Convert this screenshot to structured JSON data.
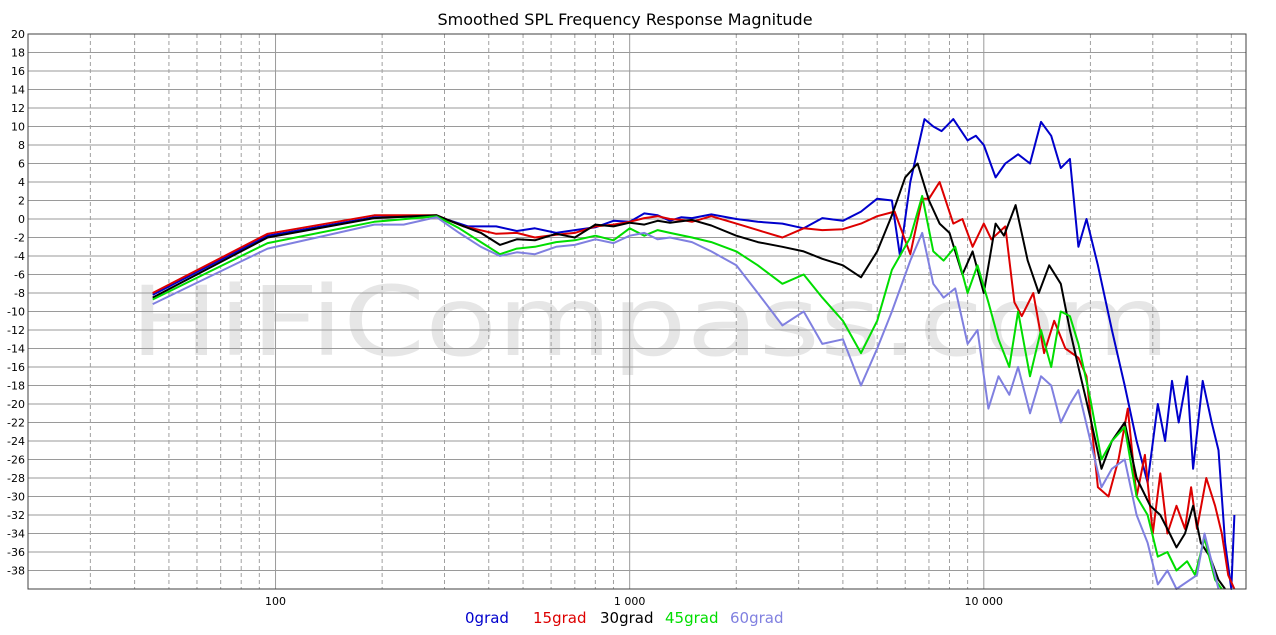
{
  "watermark": "HiFiCompass.com",
  "chart_data": {
    "type": "line",
    "title": "Smoothed SPL Frequency Response Magnitude",
    "xscale": "log",
    "xlim": [
      20,
      55000
    ],
    "ylim": [
      -40,
      20
    ],
    "grid": true,
    "legend_position": "bottom",
    "x_tick_labels": [
      {
        "value": 100,
        "label": "100"
      },
      {
        "value": 1000,
        "label": "1 000"
      },
      {
        "value": 10000,
        "label": "10 000"
      }
    ],
    "y_ticks": [
      20,
      18,
      16,
      14,
      12,
      10,
      8,
      6,
      4,
      2,
      0,
      -2,
      -4,
      -6,
      -8,
      -10,
      -12,
      -14,
      -16,
      -18,
      -20,
      -22,
      -24,
      -26,
      -28,
      -30,
      -32,
      -34,
      -36,
      -38
    ],
    "series": [
      {
        "name": "0grad",
        "color": "#0000cc",
        "points": [
          [
            45,
            -8.2
          ],
          [
            95,
            -1.8
          ],
          [
            190,
            0.2
          ],
          [
            285,
            0.3
          ],
          [
            350,
            -0.8
          ],
          [
            420,
            -0.8
          ],
          [
            480,
            -1.3
          ],
          [
            540,
            -1.0
          ],
          [
            620,
            -1.5
          ],
          [
            700,
            -1.2
          ],
          [
            800,
            -0.9
          ],
          [
            900,
            -0.2
          ],
          [
            1000,
            -0.3
          ],
          [
            1100,
            0.6
          ],
          [
            1200,
            0.4
          ],
          [
            1300,
            -0.2
          ],
          [
            1400,
            0.2
          ],
          [
            1500,
            0.1
          ],
          [
            1700,
            0.5
          ],
          [
            2000,
            0.0
          ],
          [
            2300,
            -0.3
          ],
          [
            2700,
            -0.5
          ],
          [
            3100,
            -1.0
          ],
          [
            3500,
            0.1
          ],
          [
            4000,
            -0.2
          ],
          [
            4500,
            0.8
          ],
          [
            5000,
            2.2
          ],
          [
            5500,
            2.0
          ],
          [
            5800,
            -4.0
          ],
          [
            6200,
            4.0
          ],
          [
            6800,
            10.8
          ],
          [
            7200,
            10.0
          ],
          [
            7600,
            9.5
          ],
          [
            8200,
            10.8
          ],
          [
            9000,
            8.5
          ],
          [
            9500,
            9.0
          ],
          [
            10000,
            8.0
          ],
          [
            10800,
            4.5
          ],
          [
            11500,
            6.0
          ],
          [
            12500,
            7.0
          ],
          [
            13500,
            6.0
          ],
          [
            14500,
            10.5
          ],
          [
            15500,
            9.0
          ],
          [
            16500,
            5.5
          ],
          [
            17500,
            6.5
          ],
          [
            18500,
            -3.0
          ],
          [
            19500,
            0.0
          ],
          [
            21000,
            -5.0
          ],
          [
            23000,
            -12.0
          ],
          [
            25000,
            -18.0
          ],
          [
            27000,
            -24.0
          ],
          [
            29000,
            -28.5
          ],
          [
            31000,
            -20.0
          ],
          [
            32500,
            -24.0
          ],
          [
            34000,
            -17.5
          ],
          [
            35500,
            -22.0
          ],
          [
            37500,
            -17.0
          ],
          [
            39000,
            -27.0
          ],
          [
            41500,
            -17.5
          ],
          [
            44000,
            -22.0
          ],
          [
            46000,
            -25.0
          ],
          [
            48000,
            -35.0
          ],
          [
            50000,
            -40.0
          ],
          [
            51000,
            -32.0
          ]
        ]
      },
      {
        "name": "15grad",
        "color": "#dd0000",
        "points": [
          [
            45,
            -8.0
          ],
          [
            95,
            -1.6
          ],
          [
            190,
            0.4
          ],
          [
            285,
            0.4
          ],
          [
            340,
            -0.8
          ],
          [
            420,
            -1.6
          ],
          [
            480,
            -1.5
          ],
          [
            540,
            -2.0
          ],
          [
            620,
            -1.7
          ],
          [
            700,
            -1.5
          ],
          [
            800,
            -0.8
          ],
          [
            900,
            -0.6
          ],
          [
            1000,
            -0.3
          ],
          [
            1100,
            0.1
          ],
          [
            1200,
            0.3
          ],
          [
            1300,
            0.0
          ],
          [
            1400,
            -0.1
          ],
          [
            1500,
            -0.3
          ],
          [
            1700,
            0.3
          ],
          [
            2000,
            -0.5
          ],
          [
            2300,
            -1.2
          ],
          [
            2700,
            -2.0
          ],
          [
            3100,
            -1.0
          ],
          [
            3500,
            -1.2
          ],
          [
            4000,
            -1.1
          ],
          [
            4500,
            -0.5
          ],
          [
            5000,
            0.3
          ],
          [
            5600,
            0.8
          ],
          [
            6200,
            -3.8
          ],
          [
            6700,
            2.2
          ],
          [
            7000,
            2.2
          ],
          [
            7500,
            4.0
          ],
          [
            8200,
            -0.5
          ],
          [
            8700,
            0.0
          ],
          [
            9300,
            -3.0
          ],
          [
            10000,
            -0.5
          ],
          [
            10500,
            -2.2
          ],
          [
            11500,
            -0.8
          ],
          [
            12200,
            -9.0
          ],
          [
            12800,
            -10.5
          ],
          [
            13800,
            -8.0
          ],
          [
            14800,
            -14.5
          ],
          [
            15800,
            -11.0
          ],
          [
            17000,
            -14.0
          ],
          [
            18500,
            -15.0
          ],
          [
            19500,
            -17.0
          ],
          [
            21000,
            -29.0
          ],
          [
            22500,
            -30.0
          ],
          [
            24000,
            -26.0
          ],
          [
            25500,
            -20.5
          ],
          [
            27000,
            -30.0
          ],
          [
            28500,
            -25.5
          ],
          [
            30000,
            -34.0
          ],
          [
            31500,
            -27.5
          ],
          [
            33000,
            -34.0
          ],
          [
            35000,
            -31.0
          ],
          [
            37000,
            -33.5
          ],
          [
            38500,
            -29.0
          ],
          [
            40000,
            -33.5
          ],
          [
            42500,
            -28.0
          ],
          [
            45000,
            -31.0
          ],
          [
            47000,
            -34.0
          ],
          [
            49000,
            -38.5
          ],
          [
            51000,
            -40.0
          ]
        ]
      },
      {
        "name": "30grad",
        "color": "#000000",
        "points": [
          [
            45,
            -8.5
          ],
          [
            95,
            -2.0
          ],
          [
            190,
            0.1
          ],
          [
            285,
            0.4
          ],
          [
            330,
            -0.6
          ],
          [
            380,
            -1.5
          ],
          [
            430,
            -2.8
          ],
          [
            480,
            -2.2
          ],
          [
            540,
            -2.3
          ],
          [
            620,
            -1.6
          ],
          [
            700,
            -2.0
          ],
          [
            800,
            -0.6
          ],
          [
            900,
            -0.8
          ],
          [
            1000,
            -0.4
          ],
          [
            1100,
            -0.6
          ],
          [
            1200,
            -0.2
          ],
          [
            1300,
            -0.4
          ],
          [
            1500,
            -0.1
          ],
          [
            1700,
            -0.7
          ],
          [
            2000,
            -1.8
          ],
          [
            2300,
            -2.5
          ],
          [
            2700,
            -3.0
          ],
          [
            3100,
            -3.5
          ],
          [
            3500,
            -4.3
          ],
          [
            4000,
            -5.0
          ],
          [
            4500,
            -6.3
          ],
          [
            5000,
            -3.5
          ],
          [
            5500,
            0.4
          ],
          [
            6000,
            4.5
          ],
          [
            6500,
            6.0
          ],
          [
            7000,
            2.0
          ],
          [
            7500,
            -0.5
          ],
          [
            8000,
            -1.5
          ],
          [
            8700,
            -6.0
          ],
          [
            9300,
            -3.5
          ],
          [
            10000,
            -8.0
          ],
          [
            10800,
            -0.5
          ],
          [
            11400,
            -1.8
          ],
          [
            12300,
            1.5
          ],
          [
            13300,
            -4.5
          ],
          [
            14300,
            -8.0
          ],
          [
            15300,
            -5.0
          ],
          [
            16500,
            -7.0
          ],
          [
            17500,
            -12.0
          ],
          [
            18500,
            -16.0
          ],
          [
            20000,
            -21.5
          ],
          [
            21500,
            -27.0
          ],
          [
            23000,
            -24.0
          ],
          [
            25000,
            -22.0
          ],
          [
            27000,
            -28.0
          ],
          [
            29500,
            -31.0
          ],
          [
            31500,
            -32.0
          ],
          [
            33500,
            -34.0
          ],
          [
            35000,
            -35.5
          ],
          [
            37000,
            -34.0
          ],
          [
            39000,
            -31.0
          ],
          [
            41000,
            -35.0
          ],
          [
            43500,
            -36.5
          ],
          [
            46000,
            -39.0
          ],
          [
            48000,
            -40.0
          ]
        ]
      },
      {
        "name": "45grad",
        "color": "#00dd00",
        "points": [
          [
            45,
            -8.7
          ],
          [
            95,
            -2.6
          ],
          [
            190,
            -0.3
          ],
          [
            285,
            0.3
          ],
          [
            330,
            -1.0
          ],
          [
            380,
            -2.5
          ],
          [
            430,
            -3.8
          ],
          [
            480,
            -3.2
          ],
          [
            540,
            -3.0
          ],
          [
            620,
            -2.5
          ],
          [
            700,
            -2.3
          ],
          [
            800,
            -1.8
          ],
          [
            900,
            -2.3
          ],
          [
            1000,
            -1.0
          ],
          [
            1100,
            -1.8
          ],
          [
            1200,
            -1.2
          ],
          [
            1300,
            -1.5
          ],
          [
            1500,
            -2.0
          ],
          [
            1700,
            -2.5
          ],
          [
            2000,
            -3.5
          ],
          [
            2300,
            -5.0
          ],
          [
            2700,
            -7.0
          ],
          [
            3100,
            -6.0
          ],
          [
            3500,
            -8.5
          ],
          [
            4000,
            -11.0
          ],
          [
            4500,
            -14.5
          ],
          [
            5000,
            -11.0
          ],
          [
            5500,
            -5.5
          ],
          [
            6200,
            -2.0
          ],
          [
            6700,
            2.5
          ],
          [
            7200,
            -3.5
          ],
          [
            7700,
            -4.5
          ],
          [
            8300,
            -3.0
          ],
          [
            9000,
            -8.0
          ],
          [
            9600,
            -5.0
          ],
          [
            10300,
            -9.0
          ],
          [
            11000,
            -13.0
          ],
          [
            11800,
            -16.0
          ],
          [
            12500,
            -10.0
          ],
          [
            13500,
            -17.0
          ],
          [
            14500,
            -12.0
          ],
          [
            15500,
            -16.0
          ],
          [
            16500,
            -10.0
          ],
          [
            17500,
            -10.5
          ],
          [
            18500,
            -13.5
          ],
          [
            20000,
            -19.5
          ],
          [
            21500,
            -26.0
          ],
          [
            23000,
            -24.0
          ],
          [
            25000,
            -22.5
          ],
          [
            27000,
            -30.0
          ],
          [
            29000,
            -32.0
          ],
          [
            31000,
            -36.5
          ],
          [
            33000,
            -36.0
          ],
          [
            35000,
            -38.0
          ],
          [
            37500,
            -37.0
          ],
          [
            39500,
            -38.5
          ],
          [
            42000,
            -34.5
          ],
          [
            45000,
            -39.0
          ],
          [
            47000,
            -40.0
          ]
        ]
      },
      {
        "name": "60grad",
        "color": "#8080e0",
        "points": [
          [
            45,
            -9.2
          ],
          [
            95,
            -3.2
          ],
          [
            190,
            -0.6
          ],
          [
            230,
            -0.6
          ],
          [
            285,
            0.2
          ],
          [
            330,
            -1.5
          ],
          [
            380,
            -3.0
          ],
          [
            430,
            -4.0
          ],
          [
            480,
            -3.6
          ],
          [
            540,
            -3.8
          ],
          [
            620,
            -3.0
          ],
          [
            700,
            -2.8
          ],
          [
            800,
            -2.2
          ],
          [
            900,
            -2.6
          ],
          [
            1000,
            -1.8
          ],
          [
            1100,
            -1.5
          ],
          [
            1200,
            -2.2
          ],
          [
            1300,
            -2.0
          ],
          [
            1500,
            -2.5
          ],
          [
            1700,
            -3.5
          ],
          [
            2000,
            -5.0
          ],
          [
            2300,
            -8.0
          ],
          [
            2700,
            -11.5
          ],
          [
            3100,
            -10.0
          ],
          [
            3500,
            -13.5
          ],
          [
            4000,
            -13.0
          ],
          [
            4500,
            -18.0
          ],
          [
            5000,
            -14.0
          ],
          [
            5500,
            -10.0
          ],
          [
            6200,
            -4.5
          ],
          [
            6700,
            -1.5
          ],
          [
            7200,
            -7.0
          ],
          [
            7700,
            -8.5
          ],
          [
            8300,
            -7.5
          ],
          [
            9000,
            -13.5
          ],
          [
            9600,
            -12.0
          ],
          [
            10300,
            -20.5
          ],
          [
            11000,
            -17.0
          ],
          [
            11800,
            -19.0
          ],
          [
            12500,
            -16.0
          ],
          [
            13500,
            -21.0
          ],
          [
            14500,
            -17.0
          ],
          [
            15500,
            -18.0
          ],
          [
            16500,
            -22.0
          ],
          [
            17500,
            -20.0
          ],
          [
            18500,
            -18.5
          ],
          [
            20000,
            -24.0
          ],
          [
            21500,
            -29.0
          ],
          [
            23000,
            -27.0
          ],
          [
            25000,
            -26.0
          ],
          [
            27000,
            -32.0
          ],
          [
            29000,
            -35.0
          ],
          [
            31000,
            -39.5
          ],
          [
            33000,
            -38.0
          ],
          [
            35000,
            -40.0
          ],
          [
            40000,
            -38.5
          ],
          [
            42000,
            -34.0
          ],
          [
            45000,
            -38.5
          ],
          [
            46000,
            -40.0
          ]
        ]
      }
    ]
  }
}
